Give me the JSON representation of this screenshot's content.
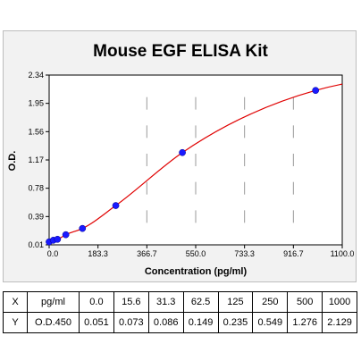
{
  "chart_data": {
    "type": "scatter",
    "title": "Mouse EGF ELISA Kit",
    "xlabel": "Concentration (pg/ml)",
    "ylabel": "O.D.",
    "xlim": [
      0,
      1100
    ],
    "ylim": [
      0.01,
      2.34
    ],
    "xticks": [
      "0.0",
      "183.3",
      "366.7",
      "550.0",
      "733.3",
      "916.7",
      "1100.0"
    ],
    "yticks": [
      "0.01",
      "0.39",
      "0.78",
      "1.17",
      "1.56",
      "1.95",
      "2.34"
    ],
    "point_color": "#1a1aff",
    "curve_color": "#e00000",
    "series": [
      {
        "x": [
          0,
          15.6,
          31.3,
          62.5,
          125,
          250,
          500,
          1000
        ],
        "y": [
          0.051,
          0.073,
          0.086,
          0.149,
          0.235,
          0.549,
          1.276,
          2.129
        ]
      }
    ]
  },
  "table": {
    "rows": [
      [
        "X",
        "pg/ml",
        "0.0",
        "15.6",
        "31.3",
        "62.5",
        "125",
        "250",
        "500",
        "1000"
      ],
      [
        "Y",
        "O.D.450",
        "0.051",
        "0.073",
        "0.086",
        "0.149",
        "0.235",
        "0.549",
        "1.276",
        "2.129"
      ]
    ]
  }
}
